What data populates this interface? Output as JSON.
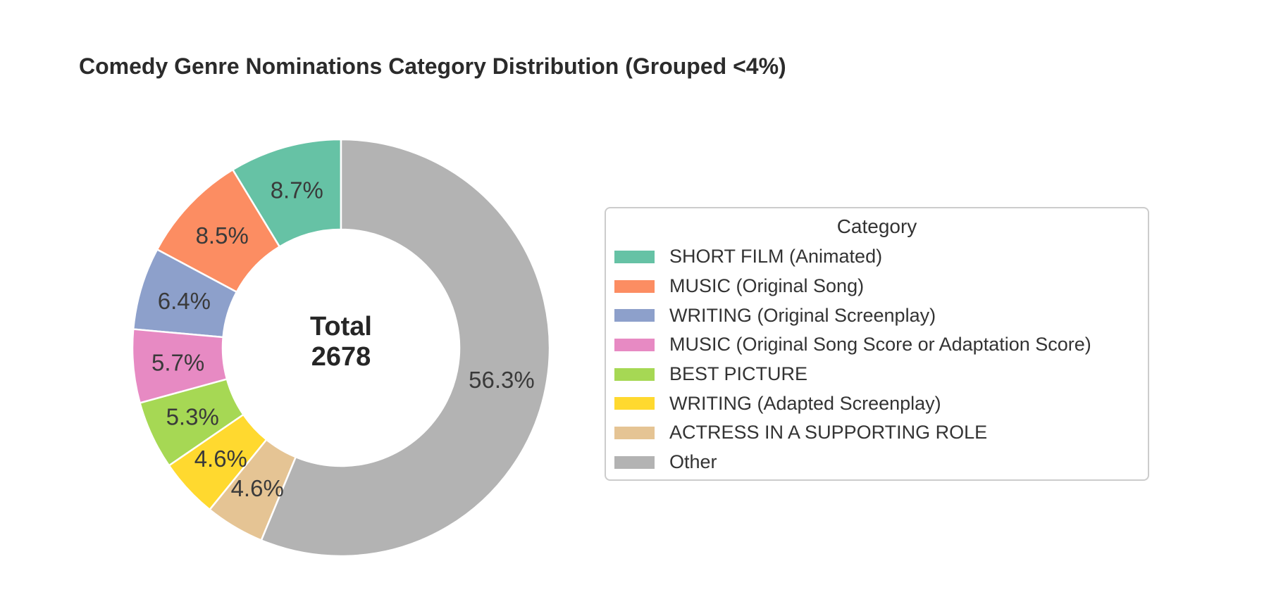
{
  "title": "Comedy Genre Nominations Category Distribution (Grouped <4%)",
  "chart_data": {
    "type": "pie",
    "subtype": "donut",
    "title": "Comedy Genre Nominations Category Distribution (Grouped <4%)",
    "start_angle_deg": 90,
    "direction": "counterclockwise",
    "grid": false,
    "legend_position": "right",
    "legend_title": "Category",
    "center_label": {
      "line1": "Total",
      "line2": "2678"
    },
    "total": 2678,
    "pct_label_distance": 0.785,
    "slices": [
      {
        "label": "SHORT FILM (Animated)",
        "pct": 8.7,
        "color": "#66c2a5"
      },
      {
        "label": "MUSIC (Original Song)",
        "pct": 8.5,
        "color": "#fc8d62"
      },
      {
        "label": "WRITING (Original Screenplay)",
        "pct": 6.4,
        "color": "#8da0cb"
      },
      {
        "label": "MUSIC (Original Song Score or Adaptation Score)",
        "pct": 5.7,
        "color": "#e78ac3"
      },
      {
        "label": "BEST PICTURE",
        "pct": 5.3,
        "color": "#a6d854"
      },
      {
        "label": "WRITING (Adapted Screenplay)",
        "pct": 4.6,
        "color": "#ffd92f"
      },
      {
        "label": "ACTRESS IN A SUPPORTING ROLE",
        "pct": 4.6,
        "color": "#e5c494"
      },
      {
        "label": "Other",
        "pct": 56.3,
        "color": "#b3b3b3"
      }
    ],
    "colors": {
      "text_dark": "#2b2b2b",
      "pct_label": "#3a3a3a",
      "legend_border": "#cccccc",
      "slice_gap": "#ffffff"
    }
  }
}
